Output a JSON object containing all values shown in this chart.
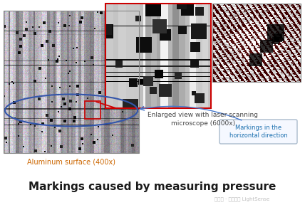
{
  "bg_color": "#ffffff",
  "title": "Markings caused by measuring pressure",
  "title_fontsize": 11,
  "title_color": "#1a1a1a",
  "watermark": "公众号 · 疏芚科技 LightSense",
  "watermark_color": "#c0c0c0",
  "label_al": "Aluminum surface (400x)",
  "label_al_color": "#cc6600",
  "label_laser": "Enlarged view with laser scanning\nmicroscope (6000x)",
  "label_laser_color": "#444444",
  "label_markings": "Markings in the\nhorizontal direction",
  "label_markings_color": "#1a6faf",
  "zoom_border_color": "#cc0000",
  "ellipse_color": "#3355aa",
  "rect_color": "#cc0000",
  "arrow_color": "#cc0000",
  "marking_box_edge": "#aabbcc",
  "marking_box_face": "#f5f8ff"
}
